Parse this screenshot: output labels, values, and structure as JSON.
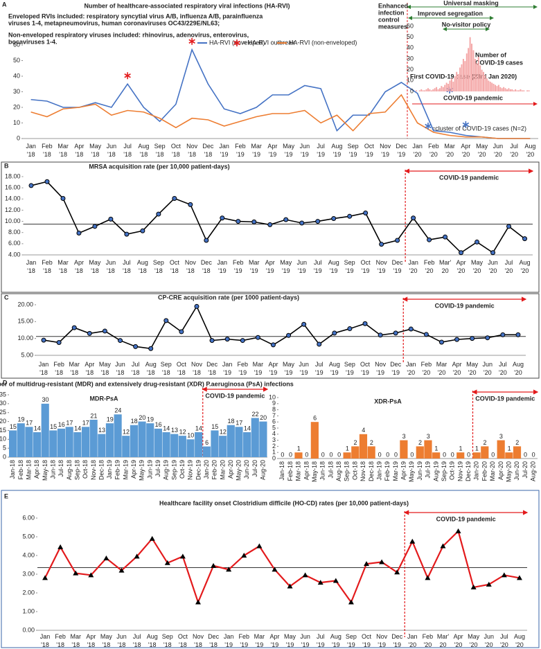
{
  "chart_data": [
    {
      "panel": "A",
      "type": "line",
      "title": "Number of healthcare-associated respiratory viral infections (HA-RVI)",
      "notes": [
        "Enveloped RVIs included: respiratory syncytial virus A/B, influenza A/B, parainfluenza",
        "viruses 1-4, metapneumovirus, human coronaviruses OC43/229E/NL63;",
        "Non-enveloped respiratory viruses included: rhinovirus, adenovirus, enterovirus,",
        "bocaviruses 1-4."
      ],
      "categories": [
        "Jan '18",
        "Feb '18",
        "Mar '18",
        "Apr '18",
        "May '18",
        "Jun '18",
        "Jul '18",
        "Aug '18",
        "Sep '18",
        "Oct '18",
        "Nov '18",
        "Dec '18",
        "Jan '19",
        "Feb '19",
        "Mar '19",
        "Apr '19",
        "May '19",
        "Jun '19",
        "Jul '19",
        "Aug '19",
        "Sep '19",
        "Oct '19",
        "Nov '19",
        "Dec '19",
        "Jan '20",
        "Feb '20",
        "Mar '20",
        "Apr '20",
        "May '20",
        "Jun '20",
        "Jul '20",
        "Aug '20"
      ],
      "series": [
        {
          "name": "HA-RVI (enveloped)",
          "color": "#4472c4",
          "values": [
            25,
            24,
            20,
            20,
            23,
            20,
            35,
            20,
            11,
            22,
            57,
            35,
            19,
            16,
            20,
            28,
            28,
            34,
            32,
            5,
            15,
            15,
            30,
            36,
            29,
            5,
            4,
            2,
            1,
            0,
            0,
            0
          ]
        },
        {
          "name": "HA-RVI (non-enveloped)",
          "color": "#ed7d31",
          "values": [
            17,
            14,
            19,
            20,
            22,
            15,
            18,
            17,
            13,
            7,
            13,
            12,
            8,
            11,
            14,
            16,
            16,
            18,
            10,
            15,
            5,
            16,
            17,
            28,
            10,
            4,
            2,
            1,
            1,
            0,
            0,
            0
          ]
        }
      ],
      "ylim": [
        0,
        60
      ],
      "yticks": [
        0,
        10,
        20,
        30,
        40,
        50,
        60
      ],
      "outbreak_label": "= HA-RVI outbreak",
      "outbreaks": [
        "Jul '18",
        "Nov '18"
      ],
      "cluster_label": "=cluster of COVID-19 cases (N=2)",
      "clusters": [
        "Mar '20",
        "Apr '20"
      ],
      "measures": [
        "Enhanced",
        "infection",
        "control",
        "measures"
      ],
      "interventions": [
        "Universal masking",
        "Improved segregation",
        "No-visitor policy"
      ],
      "first_case": "First COVID-19 case (23rd Jan 2020)",
      "pandemic_label": "COVID-19 pandemic",
      "inset": {
        "label": [
          "Number of",
          "COVID-19 cases"
        ],
        "color": "#f4a6a6",
        "ylim": [
          0,
          60
        ],
        "yticks": [
          0,
          10,
          20,
          30,
          40,
          50,
          60
        ],
        "values": [
          1,
          0,
          1,
          2,
          1,
          1,
          2,
          3,
          2,
          1,
          2,
          3,
          4,
          2,
          3,
          5,
          4,
          6,
          8,
          7,
          10,
          12,
          9,
          14,
          18,
          16,
          22,
          25,
          30,
          28,
          35,
          40,
          50,
          44,
          38,
          30,
          26,
          32,
          24,
          20,
          18,
          15,
          12,
          10,
          9,
          8,
          7,
          6,
          5,
          6,
          4,
          3,
          4,
          3,
          2,
          3,
          2,
          2,
          1,
          2,
          1,
          1,
          2,
          1,
          1,
          0,
          1,
          1
        ]
      }
    },
    {
      "panel": "B",
      "type": "line",
      "title": "MRSA acquisition rate (per 10,000 patient-days)",
      "marker": "circle",
      "categories": [
        "Jan '18",
        "Feb '18",
        "Mar '18",
        "Apr '18",
        "May '18",
        "Jun '18",
        "Jul '18",
        "Aug '18",
        "Sep '18",
        "Oct '18",
        "Nov '18",
        "Dec '18",
        "Jan '19",
        "Feb '19",
        "Mar '19",
        "Apr '19",
        "May '19",
        "Jun '19",
        "Jul '19",
        "Aug '19",
        "Sep '19",
        "Oct '19",
        "Nov '19",
        "Dec '19",
        "Jan '20",
        "Feb '20",
        "Mar' 20",
        "Apr '20",
        "May '20",
        "Jun '20",
        "Jul '20",
        "Aug '20"
      ],
      "series": [
        {
          "color": "#000000",
          "marker_color": "#4472c4",
          "values": [
            16.4,
            17.1,
            14.1,
            7.9,
            9.1,
            10.4,
            7.7,
            8.3,
            11.3,
            14.1,
            13.0,
            6.6,
            10.6,
            10.0,
            9.9,
            9.4,
            10.3,
            9.7,
            10.0,
            10.5,
            10.9,
            11.5,
            5.9,
            6.6,
            10.6,
            6.7,
            7.2,
            4.4,
            6.3,
            4.4,
            9.1,
            6.9
          ]
        }
      ],
      "reference": 9.5,
      "pandemic_start": "Jan '20",
      "pandemic_label": "COVID-19 pandemic",
      "ylim": [
        4,
        18
      ],
      "yticks": [
        {
          "value": 4,
          "label": "4.00"
        },
        {
          "value": 6,
          "label": "6.00"
        },
        {
          "value": 8,
          "label": "8.00"
        },
        {
          "value": 10,
          "label": "10.00"
        },
        {
          "value": 12,
          "label": "12.00"
        },
        {
          "value": 14,
          "label": "14.00"
        },
        {
          "value": 16,
          "label": "16.00"
        },
        {
          "value": 18,
          "label": "18.00"
        }
      ]
    },
    {
      "panel": "C",
      "type": "line",
      "title": "CP-CRE acquisition rate (per 1000 patient-days)",
      "marker": "circle",
      "categories": [
        "Jan '18",
        "Feb '18",
        "Mar '18",
        "Apr '18",
        "May '18",
        "Jun '18",
        "Jul '18",
        "Aug '18",
        "Sep '18",
        "Oct '18",
        "Nov '18",
        "Dec '18",
        "Jan '19",
        "Feb '19",
        "Mar '19",
        "Apr '19",
        "May '19",
        "Jun '19",
        "Jul '19",
        "Aug '19",
        "Sep '19",
        "Oct '19",
        "Nov '19",
        "Dec '19",
        "Jan '20",
        "Feb '20",
        "Mar '20",
        "Apr '20",
        "May '20",
        "Jun '20",
        "Jul '20",
        "Aug '20"
      ],
      "series": [
        {
          "color": "#000000",
          "marker_color": "#4472c4",
          "values": [
            9.5,
            8.8,
            13.2,
            11.5,
            12.2,
            9.4,
            7.6,
            7.0,
            15.3,
            12.0,
            19.5,
            9.4,
            9.8,
            9.4,
            10.3,
            8.1,
            10.9,
            14.2,
            8.3,
            11.6,
            12.9,
            14.4,
            11.0,
            11.6,
            12.8,
            11.2,
            8.9,
            9.7,
            10.0,
            10.2,
            11.1,
            11.1
          ]
        }
      ],
      "reference": 10.6,
      "pandemic_start": "Jan '20",
      "pandemic_label": "COVID-19 pandemic",
      "ylim": [
        5,
        20
      ],
      "yticks": [
        {
          "value": 5,
          "label": "5.00"
        },
        {
          "value": 10,
          "label": "10.00"
        },
        {
          "value": 15,
          "label": "15.00"
        },
        {
          "value": 20,
          "label": "20.00"
        }
      ]
    },
    {
      "panel": "D",
      "type": "bar",
      "suptitle": "Number of multidrug-resistant (MDR) and extensively drug-resistant (XDR) P.aeruginosa (PsA) infections",
      "title": "MDR-PsA",
      "color": "#5b9bd5",
      "categories": [
        "Jan-18",
        "Feb-18",
        "Mar-18",
        "Apr-18",
        "May-18",
        "Jun-18",
        "Jul-18",
        "Aug-18",
        "Sep-18",
        "Oct-18",
        "Nov-18",
        "Dec-18",
        "Jan-19",
        "Feb-19",
        "Mar-19",
        "Apr-19",
        "May-19",
        "Jun-19",
        "Jul-19",
        "Aug-19",
        "Sep-19",
        "Oct-19",
        "Nov-19",
        "Dec-19",
        "Jan-20",
        "Feb-20",
        "Mar-20",
        "Apr-20",
        "May-20",
        "Jun-20",
        "Jul-20",
        "Aug-20"
      ],
      "values": [
        15,
        19,
        17,
        14,
        30,
        15,
        16,
        17,
        14,
        17,
        21,
        13,
        19,
        24,
        12,
        18,
        20,
        19,
        16,
        14,
        13,
        12,
        10,
        14,
        6,
        15,
        12,
        18,
        17,
        14,
        22,
        20
      ],
      "pandemic_start": "Jan-20",
      "pandemic_label": "COVID-19 pandemic",
      "ylim": [
        0,
        35
      ],
      "yticks": [
        0,
        5,
        10,
        15,
        20,
        25,
        30,
        35
      ]
    },
    {
      "type": "bar",
      "title": "XDR-PsA",
      "color": "#ed7d31",
      "categories": [
        "Jan-18",
        "Feb-18",
        "Mar-18",
        "Apr-18",
        "May-18",
        "Jun-18",
        "Jul-18",
        "Aug-18",
        "Sep-18",
        "Oct-18",
        "Nov-18",
        "Dec-18",
        "Jan-19",
        "Feb-19",
        "Mar-19",
        "Apr-19",
        "May-19",
        "Jun-19",
        "Jul-19",
        "Aug-19",
        "Sep-19",
        "Oct-19",
        "Nov-19",
        "Dec-19",
        "Jan-20",
        "Feb-20",
        "Mar-20",
        "Apr-20",
        "May-20",
        "Jun-20",
        "Jul-20",
        "Aug-20"
      ],
      "values": [
        0,
        0,
        1,
        0,
        6,
        0,
        0,
        0,
        1,
        2,
        4,
        2,
        0,
        0,
        0,
        3,
        0,
        2,
        3,
        1,
        0,
        0,
        1,
        0,
        1,
        2,
        0,
        3,
        1,
        2,
        0,
        0
      ],
      "pandemic_start": "Jan-20",
      "pandemic_label": "COVID-19 pandemic",
      "ylim": [
        0,
        10
      ],
      "yticks": [
        0,
        1,
        2,
        3,
        4,
        5,
        6,
        7,
        8,
        9,
        10
      ]
    },
    {
      "panel": "E",
      "type": "line",
      "title": "Healthcare facility onset Clostridium difficile (HO-CD) rates (per 10,000 patient-days)",
      "marker": "triangle",
      "categories": [
        "Jan '18",
        "Feb '18",
        "Mar '18",
        "Apr '18",
        "May '18",
        "Jun '18",
        "Jul '18",
        "Aug '18",
        "Sep '18",
        "Oct '18",
        "Nov '18",
        "Dec '18",
        "Jan '19",
        "Feb '19",
        "Mar '19",
        "Apr '19",
        "May '19",
        "Jun '19",
        "Jul '19",
        "Aug '19",
        "Sep '19",
        "Oct '19",
        "Nov '19",
        "Dec '19",
        "Jan '20",
        "Feb '20",
        "Mar' 20",
        "Apr '20",
        "May '20",
        "Jun '20",
        "Jul '20",
        "Aug '20"
      ],
      "series": [
        {
          "color": "#e31a1c",
          "marker_color": "#000000",
          "values": [
            2.8,
            4.45,
            3.05,
            2.95,
            3.85,
            3.2,
            3.95,
            4.9,
            3.6,
            3.95,
            1.5,
            3.45,
            3.25,
            4.0,
            4.5,
            3.25,
            2.35,
            2.95,
            2.55,
            2.65,
            1.5,
            3.55,
            3.65,
            3.1,
            4.75,
            2.8,
            4.5,
            5.3,
            2.3,
            2.45,
            2.95,
            2.8
          ]
        }
      ],
      "reference": 3.35,
      "pandemic_start": "Jan '20",
      "pandemic_label": "COVID-19 pandemic",
      "ylim": [
        0,
        6
      ],
      "yticks": [
        {
          "value": 0,
          "label": "0.00"
        },
        {
          "value": 1,
          "label": "1.00"
        },
        {
          "value": 2,
          "label": "2.00"
        },
        {
          "value": 3,
          "label": "3.00"
        },
        {
          "value": 4,
          "label": "4.00"
        },
        {
          "value": 5,
          "label": "5.00"
        },
        {
          "value": 6,
          "label": "6.00"
        }
      ]
    }
  ]
}
